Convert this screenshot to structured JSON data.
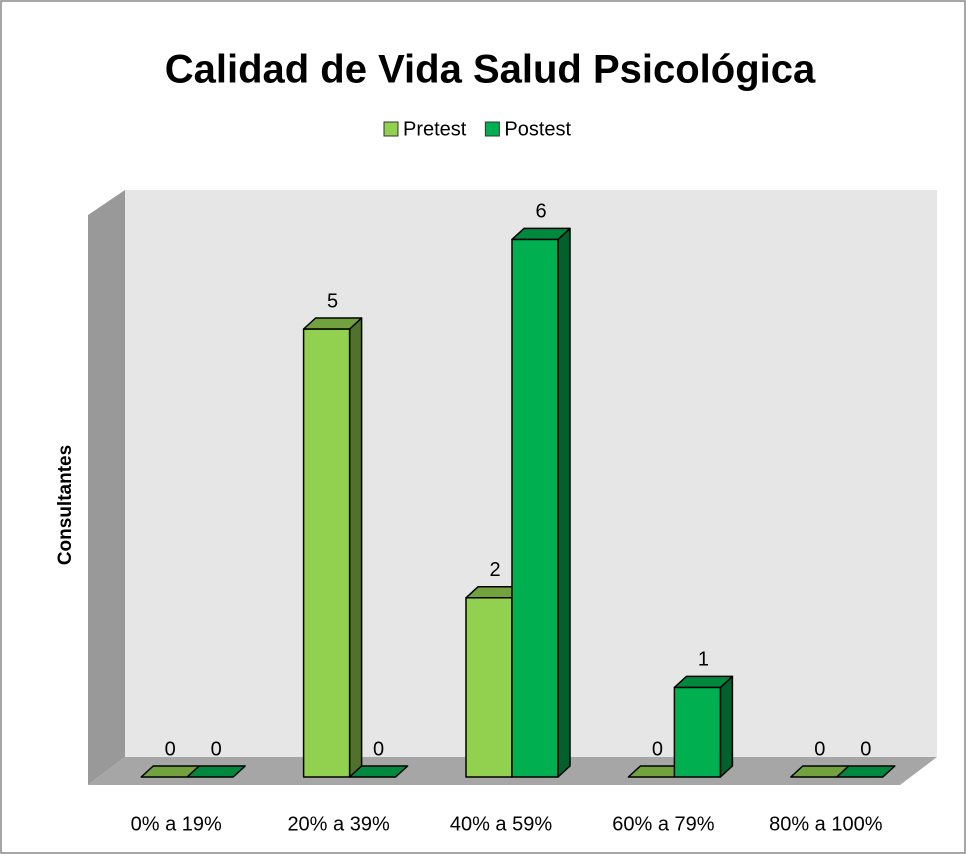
{
  "chart_data": {
    "type": "bar3d",
    "title": "Calidad de Vida Salud Psicológica",
    "y_label": "Consultantes",
    "categories": [
      "0% a 19%",
      "20% a 39%",
      "40% a 59%",
      "60% a 79%",
      "80% a 100%"
    ],
    "series": [
      {
        "name": "Pretest",
        "color": "#92d050",
        "values": [
          0,
          5,
          2,
          0,
          0
        ]
      },
      {
        "name": "Postest",
        "color": "#00b050",
        "values": [
          0,
          0,
          6,
          1,
          0
        ]
      }
    ],
    "ylim": [
      0,
      6.25
    ],
    "legend": "top"
  }
}
